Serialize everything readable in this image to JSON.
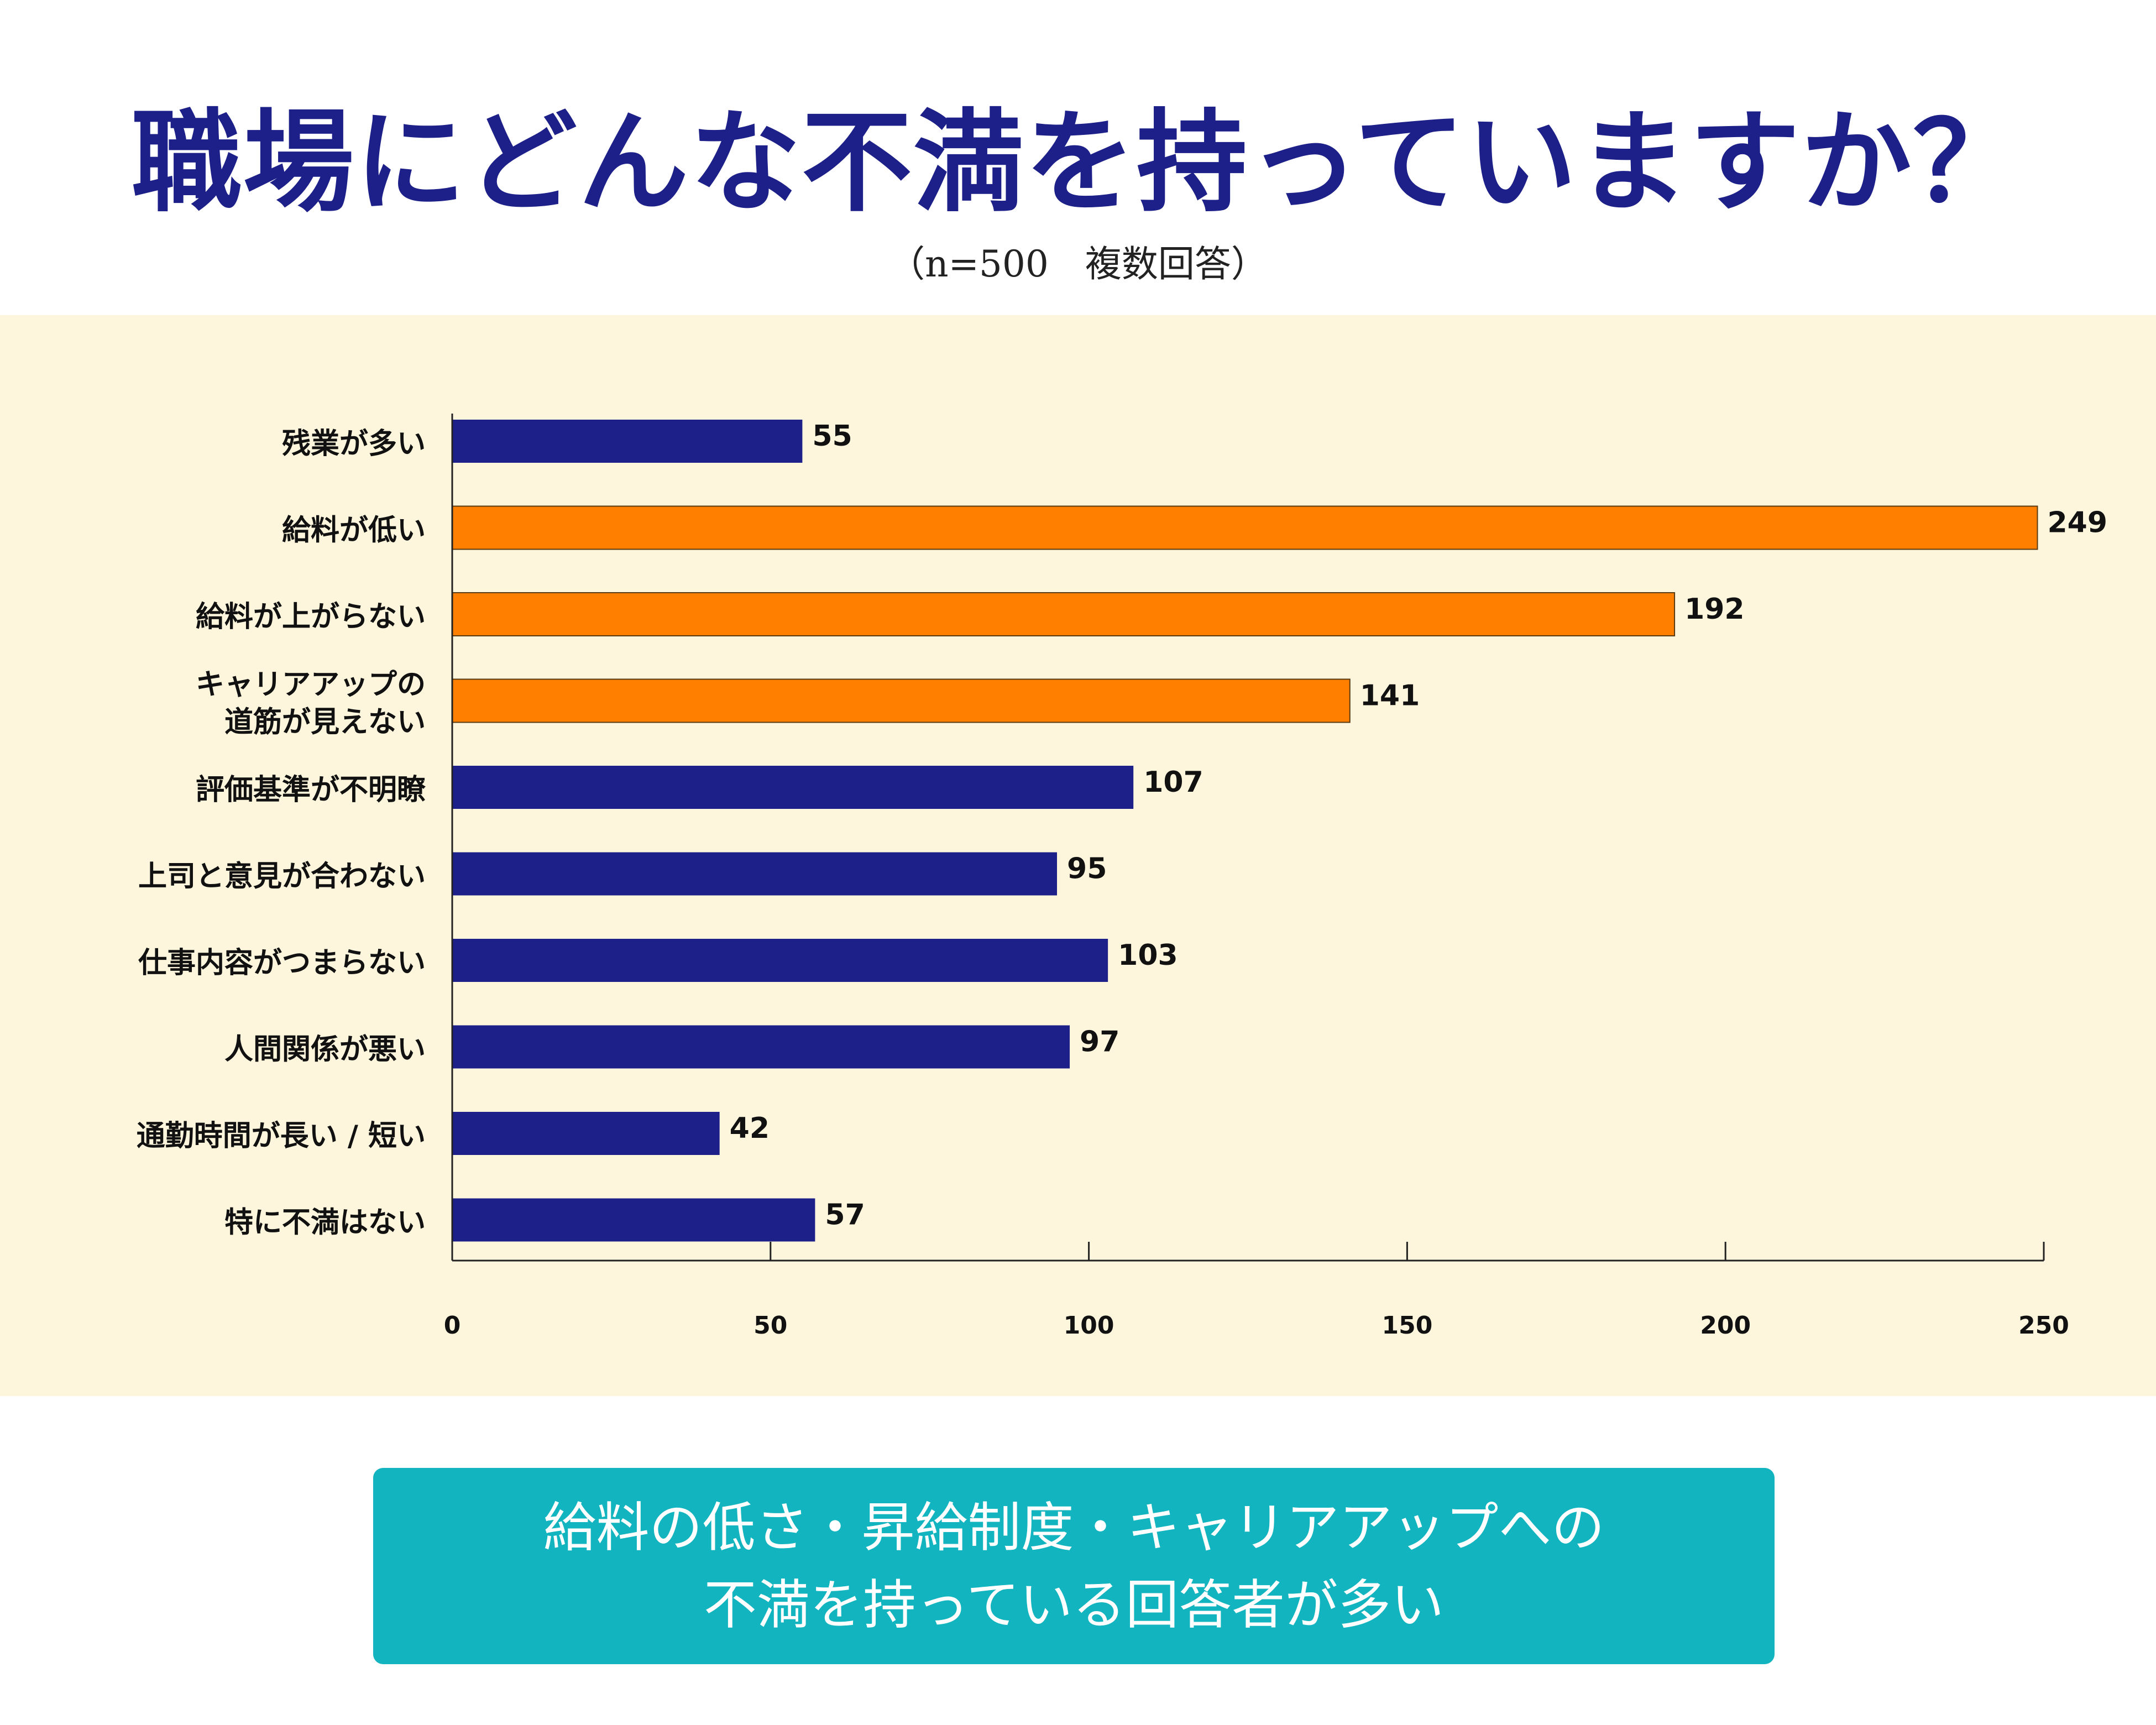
{
  "title": "職場にどんな不満を持っていますか？",
  "subtitle": "（n=500　複数回答）",
  "colors": {
    "title": "#1d2088",
    "panel_bg": "#fdf6dc",
    "bar_default": "#1d2088",
    "bar_highlight": "#ff7f00",
    "note_bg": "#12b5bf"
  },
  "chart_data": {
    "type": "bar",
    "orientation": "horizontal",
    "categories": [
      [
        "残業が多い"
      ],
      [
        "給料が低い"
      ],
      [
        "給料が上がらない"
      ],
      [
        "キャリアアップの",
        "道筋が見えない"
      ],
      [
        "評価基準が不明瞭"
      ],
      [
        "上司と意見が合わない"
      ],
      [
        "仕事内容がつまらない"
      ],
      [
        "人間関係が悪い"
      ],
      [
        "通勤時間が長い / 短い"
      ],
      [
        "特に不満はない"
      ]
    ],
    "values": [
      55,
      249,
      192,
      141,
      107,
      95,
      103,
      97,
      42,
      57
    ],
    "highlighted": [
      false,
      true,
      true,
      true,
      false,
      false,
      false,
      false,
      false,
      false
    ],
    "xlim": [
      0,
      250
    ],
    "xticks": [
      0,
      50,
      100,
      150,
      200,
      250
    ],
    "grid": false
  },
  "note": {
    "lines": [
      "給料の低さ・昇給制度・キャリアアップへの",
      "不満を持っている回答者が多い"
    ]
  }
}
